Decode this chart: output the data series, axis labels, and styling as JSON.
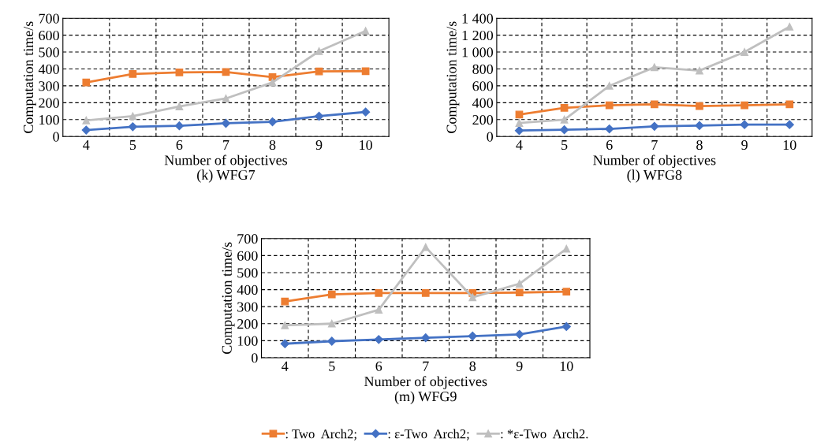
{
  "chart_data": [
    {
      "type": "line",
      "title": "(k) WFG7",
      "xlabel": "Number of objectives",
      "ylabel": "Computation time/s",
      "categories": [
        "4",
        "5",
        "6",
        "7",
        "8",
        "9",
        "10"
      ],
      "ylim": [
        0,
        700
      ],
      "yticks": [
        0,
        100,
        200,
        300,
        400,
        500,
        600,
        700
      ],
      "grid": true,
      "series": [
        {
          "color": "#ed7d31",
          "marker": "square",
          "values": [
            320,
            370,
            380,
            382,
            352,
            385,
            387
          ]
        },
        {
          "color": "#4472c4",
          "marker": "diamond",
          "values": [
            38,
            58,
            63,
            78,
            87,
            120,
            145
          ]
        },
        {
          "color": "#bfbfbf",
          "marker": "triangle",
          "values": [
            95,
            120,
            178,
            225,
            320,
            505,
            625
          ]
        }
      ]
    },
    {
      "type": "line",
      "title": "(l) WFG8",
      "xlabel": "Number of objectives",
      "ylabel": "Computation time/s",
      "categories": [
        "4",
        "5",
        "6",
        "7",
        "8",
        "9",
        "10"
      ],
      "ylim": [
        0,
        1400
      ],
      "yticks": [
        0,
        200,
        400,
        600,
        800,
        {
          "value": 1000,
          "label": "1 000"
        },
        {
          "value": 1200,
          "label": "1 200"
        },
        {
          "value": 1400,
          "label": "1 400"
        }
      ],
      "grid": true,
      "series": [
        {
          "color": "#ed7d31",
          "marker": "square",
          "values": [
            260,
            340,
            370,
            380,
            360,
            370,
            380
          ]
        },
        {
          "color": "#4472c4",
          "marker": "diamond",
          "values": [
            70,
            80,
            90,
            120,
            130,
            140,
            140
          ]
        },
        {
          "color": "#bfbfbf",
          "marker": "triangle",
          "values": [
            160,
            200,
            600,
            820,
            780,
            1000,
            1300
          ]
        }
      ]
    },
    {
      "type": "line",
      "title": "(m) WFG9",
      "xlabel": "Number of objectives",
      "ylabel": "Computation time/s",
      "categories": [
        "4",
        "5",
        "6",
        "7",
        "8",
        "9",
        "10"
      ],
      "ylim": [
        0,
        700
      ],
      "yticks": [
        0,
        100,
        200,
        300,
        400,
        500,
        600,
        700
      ],
      "grid": true,
      "legend": "bottom",
      "series": [
        {
          "name": ": Two  Arch2;",
          "color": "#ed7d31",
          "marker": "square",
          "values": [
            330,
            372,
            380,
            380,
            380,
            383,
            388
          ]
        },
        {
          "name": ": ε-Two  Arch2;",
          "color": "#4472c4",
          "marker": "diamond",
          "values": [
            82,
            97,
            107,
            117,
            127,
            137,
            183
          ]
        },
        {
          "name": ": *ε-Two  Arch2.",
          "color": "#bfbfbf",
          "marker": "triangle",
          "values": [
            190,
            200,
            282,
            650,
            355,
            435,
            640
          ]
        }
      ]
    }
  ]
}
